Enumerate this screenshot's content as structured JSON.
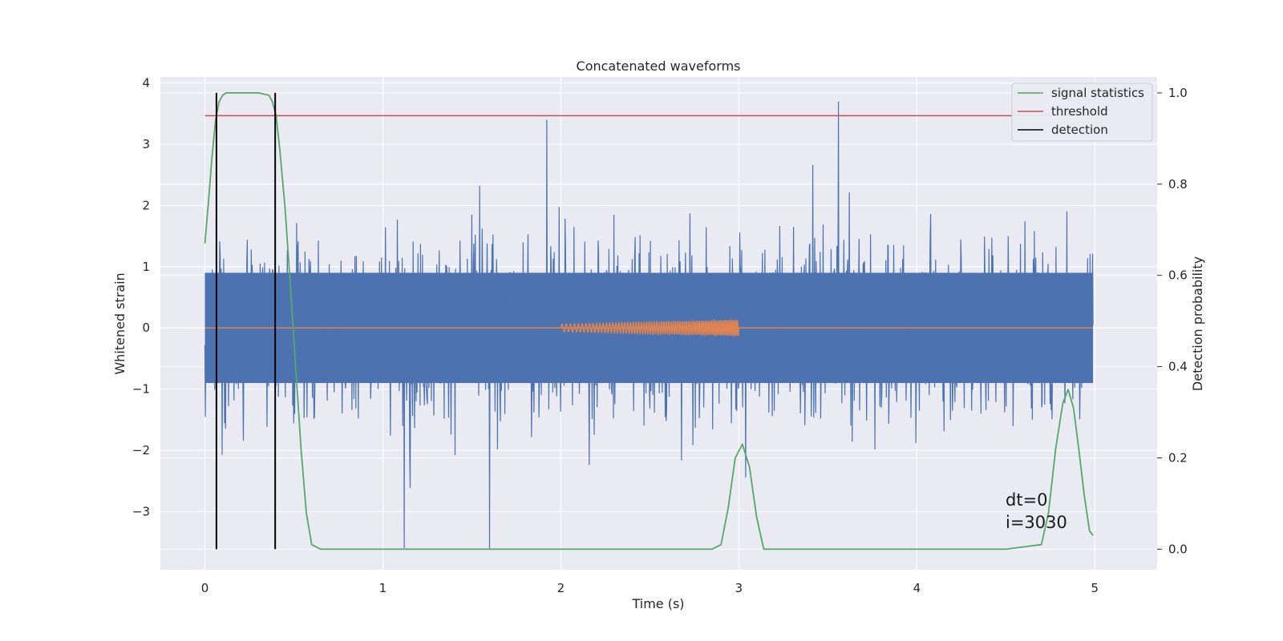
{
  "chart_data": {
    "type": "line",
    "title": "Concatenated waveforms",
    "xlabel": "Time (s)",
    "ylabel_left": "Whitened strain",
    "ylabel_right": "Detection probability",
    "xlim": [
      -0.25,
      5.35
    ],
    "ylim_left": [
      -3.95,
      4.1
    ],
    "ylim_right": [
      -0.045,
      1.035
    ],
    "x_ticks": [
      0,
      1,
      2,
      3,
      4,
      5
    ],
    "y_ticks_left": [
      -3,
      -2,
      -1,
      0,
      1,
      2,
      3,
      4
    ],
    "y_ticks_right": [
      0.0,
      0.2,
      0.4,
      0.6,
      0.8,
      1.0
    ],
    "grid": true,
    "legend_position": "top-right",
    "colors": {
      "strain": "#4c72b0",
      "injected": "#dd8452",
      "signal_statistics": "#55a868",
      "threshold": "#c44e52",
      "detection": "#000000",
      "background": "#eaeaf2",
      "grid": "#ffffff"
    },
    "series": [
      {
        "name": "signal statistics",
        "axis": "right",
        "x": [
          0.0,
          0.02,
          0.04,
          0.06,
          0.08,
          0.1,
          0.12,
          0.14,
          0.2,
          0.3,
          0.36,
          0.38,
          0.4,
          0.42,
          0.45,
          0.48,
          0.51,
          0.54,
          0.57,
          0.6,
          0.65,
          1.0,
          2.0,
          2.85,
          2.9,
          2.94,
          2.98,
          3.02,
          3.06,
          3.1,
          3.14,
          3.2,
          3.5,
          4.0,
          4.5,
          4.7,
          4.74,
          4.78,
          4.82,
          4.85,
          4.88,
          4.91,
          4.94,
          4.97,
          4.99
        ],
        "y": [
          0.67,
          0.76,
          0.86,
          0.94,
          0.98,
          0.995,
          1.0,
          1.0,
          1.0,
          1.0,
          0.995,
          0.98,
          0.95,
          0.88,
          0.75,
          0.58,
          0.4,
          0.22,
          0.08,
          0.01,
          0.0,
          0.0,
          0.0,
          0.0,
          0.01,
          0.09,
          0.2,
          0.23,
          0.18,
          0.07,
          0.0,
          0.0,
          0.0,
          0.0,
          0.0,
          0.01,
          0.08,
          0.22,
          0.32,
          0.35,
          0.31,
          0.22,
          0.12,
          0.04,
          0.03
        ]
      },
      {
        "name": "threshold",
        "axis": "right",
        "x": [
          0.0,
          4.99
        ],
        "y": [
          0.95,
          0.95
        ]
      },
      {
        "name": "detection",
        "axis": "right",
        "x_lines": [
          0.065,
          0.395
        ],
        "y_range": [
          0.0,
          1.0
        ]
      },
      {
        "name": "",
        "axis": "left",
        "description_type": "noise",
        "x_range": [
          0.0,
          4.99
        ],
        "band_core": [
          -0.9,
          0.9
        ],
        "typical_peaks": [
          -2.4,
          2.5
        ],
        "extreme_max": 3.7,
        "extreme_min": -3.6
      },
      {
        "name": "",
        "axis": "left",
        "description_type": "chirp",
        "x_range": [
          2.0,
          3.0
        ],
        "amplitude": [
          0.06,
          0.13
        ],
        "baseline": 0.0
      }
    ],
    "legend": [
      "signal statistics",
      "threshold",
      "detection"
    ],
    "annotations": [
      "dt=0",
      "i=3030"
    ]
  }
}
